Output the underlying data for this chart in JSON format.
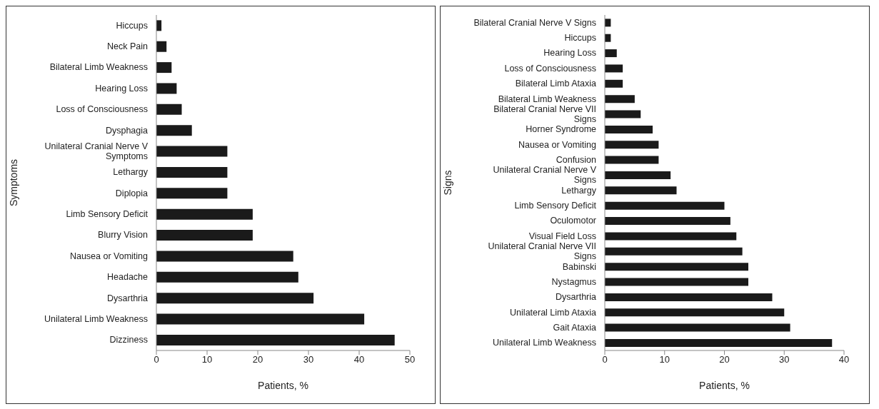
{
  "chart_data": [
    {
      "type": "bar",
      "orientation": "horizontal",
      "xlabel": "Patients, %",
      "ylabel": "Symptoms",
      "color": "#1a1a1a",
      "categories": [
        "Hiccups",
        "Neck Pain",
        "Bilateral Limb Weakness",
        "Hearing Loss",
        "Loss of Consciousness",
        "Dysphagia",
        "Unilateral Cranial Nerve V Symptoms",
        "Lethargy",
        "Diplopia",
        "Limb Sensory Deficit",
        "Blurry Vision",
        "Nausea or Vomiting",
        "Headache",
        "Dysarthria",
        "Unilateral Limb Weakness",
        "Dizziness"
      ],
      "values": [
        1,
        2,
        3,
        4,
        5,
        7,
        14,
        14,
        14,
        19,
        19,
        27,
        28,
        31,
        41,
        47
      ],
      "xlim": [
        0,
        50
      ],
      "xticks": [
        0,
        10,
        20,
        30,
        40,
        50
      ]
    },
    {
      "type": "bar",
      "orientation": "horizontal",
      "xlabel": "Patients, %",
      "ylabel": "Signs",
      "color": "#1a1a1a",
      "categories": [
        "Bilateral Cranial Nerve V Signs",
        "Hiccups",
        "Hearing Loss",
        "Loss of Consciousness",
        "Bilateral Limb Ataxia",
        "Bilateral Limb Weakness",
        "Bilateral Cranial Nerve VII Signs",
        "Horner Syndrome",
        "Nausea or Vomiting",
        "Confusion",
        "Unilateral Cranial Nerve V Signs",
        "Lethargy",
        "Limb Sensory Deficit",
        "Oculomotor",
        "Visual Field Loss",
        "Unilateral Cranial Nerve VII Signs",
        "Babinski",
        "Nystagmus",
        "Dysarthria",
        "Unilateral Limb Ataxia",
        "Gait Ataxia",
        "Unilateral Limb Weakness"
      ],
      "values": [
        1,
        1,
        2,
        3,
        3,
        5,
        6,
        8,
        9,
        9,
        11,
        12,
        20,
        21,
        22,
        23,
        24,
        24,
        28,
        30,
        31,
        38
      ],
      "xlim": [
        0,
        40
      ],
      "xticks": [
        0,
        10,
        20,
        30,
        40
      ]
    }
  ]
}
